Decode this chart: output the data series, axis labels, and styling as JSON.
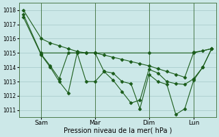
{
  "background_color": "#cce8e8",
  "grid_color": "#aacccc",
  "line_color": "#1a5c1a",
  "xlabel": "Pression niveau de la mer( hPa )",
  "ylim": [
    1010.5,
    1018.5
  ],
  "yticks": [
    1011,
    1012,
    1013,
    1014,
    1015,
    1016,
    1017,
    1018
  ],
  "x_tick_labels": [
    "Sam",
    "Mar",
    "Dim",
    "Lun"
  ],
  "x_tick_positions": [
    2,
    8,
    14,
    19
  ],
  "xlim": [
    -0.5,
    21.5
  ],
  "series1_x": [
    0,
    2,
    3,
    4,
    5,
    6,
    7,
    8,
    9,
    10,
    11,
    12,
    13,
    14,
    15,
    16,
    17,
    18,
    19,
    20,
    21
  ],
  "series1_y": [
    1018.0,
    1016.0,
    1015.7,
    1015.5,
    1015.3,
    1015.1,
    1015.0,
    1015.0,
    1014.85,
    1014.7,
    1014.55,
    1014.4,
    1014.25,
    1014.1,
    1013.9,
    1013.7,
    1013.5,
    1013.3,
    1015.05,
    1015.15,
    1015.3
  ],
  "series2_x": [
    0,
    2,
    3,
    4,
    5,
    6,
    7,
    8,
    9,
    10,
    11,
    12,
    13,
    14,
    15,
    16,
    17,
    18,
    19,
    20,
    21
  ],
  "series2_y": [
    1017.7,
    1014.9,
    1014.1,
    1013.2,
    1015.0,
    1015.0,
    1015.0,
    1015.0,
    1013.7,
    1013.1,
    1012.3,
    1011.5,
    1011.7,
    1013.85,
    1013.6,
    1013.0,
    1012.85,
    1012.8,
    1013.2,
    1014.0,
    1015.3
  ],
  "series3_x": [
    0,
    2,
    3,
    4,
    5,
    6,
    7,
    8,
    9,
    10,
    11,
    12,
    13,
    14,
    15,
    16,
    17,
    18,
    19,
    20,
    21
  ],
  "series3_y": [
    1017.5,
    1014.85,
    1014.0,
    1013.0,
    1012.2,
    1015.0,
    1013.0,
    1013.0,
    1013.7,
    1013.6,
    1013.0,
    1012.85,
    1011.1,
    1013.5,
    1013.0,
    1012.8,
    1010.7,
    1011.1,
    1013.1,
    1014.0,
    1015.3
  ],
  "series4_x": [
    2,
    8,
    14,
    19,
    21
  ],
  "series4_y": [
    1015.0,
    1015.0,
    1015.0,
    1015.0,
    1015.3
  ]
}
